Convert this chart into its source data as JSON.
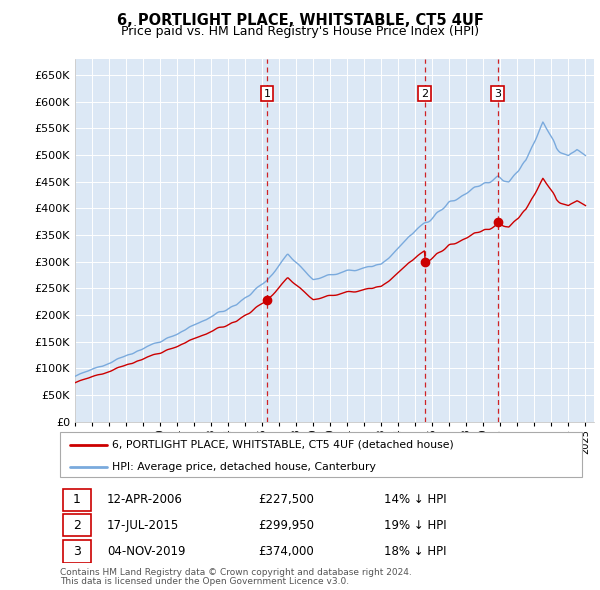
{
  "title": "6, PORTLIGHT PLACE, WHITSTABLE, CT5 4UF",
  "subtitle": "Price paid vs. HM Land Registry's House Price Index (HPI)",
  "legend_line1": "6, PORTLIGHT PLACE, WHITSTABLE, CT5 4UF (detached house)",
  "legend_line2": "HPI: Average price, detached house, Canterbury",
  "footer1": "Contains HM Land Registry data © Crown copyright and database right 2024.",
  "footer2": "This data is licensed under the Open Government Licence v3.0.",
  "sale_color": "#cc0000",
  "hpi_color": "#7aaadd",
  "background_chart": "#dce8f5",
  "background_fig": "#ffffff",
  "grid_color": "#ffffff",
  "purchases": [
    {
      "label": "1",
      "date": "12-APR-2006",
      "price": 227500,
      "hpi_pct": "14% ↓ HPI",
      "year": 2006.28
    },
    {
      "label": "2",
      "date": "17-JUL-2015",
      "price": 299950,
      "hpi_pct": "19% ↓ HPI",
      "year": 2015.54
    },
    {
      "label": "3",
      "date": "04-NOV-2019",
      "price": 374000,
      "hpi_pct": "18% ↓ HPI",
      "year": 2019.84
    }
  ],
  "ylim": [
    0,
    680000
  ],
  "yticks": [
    0,
    50000,
    100000,
    150000,
    200000,
    250000,
    300000,
    350000,
    400000,
    450000,
    500000,
    550000,
    600000,
    650000
  ],
  "xlim_start": 1995,
  "xlim_end": 2025.5
}
